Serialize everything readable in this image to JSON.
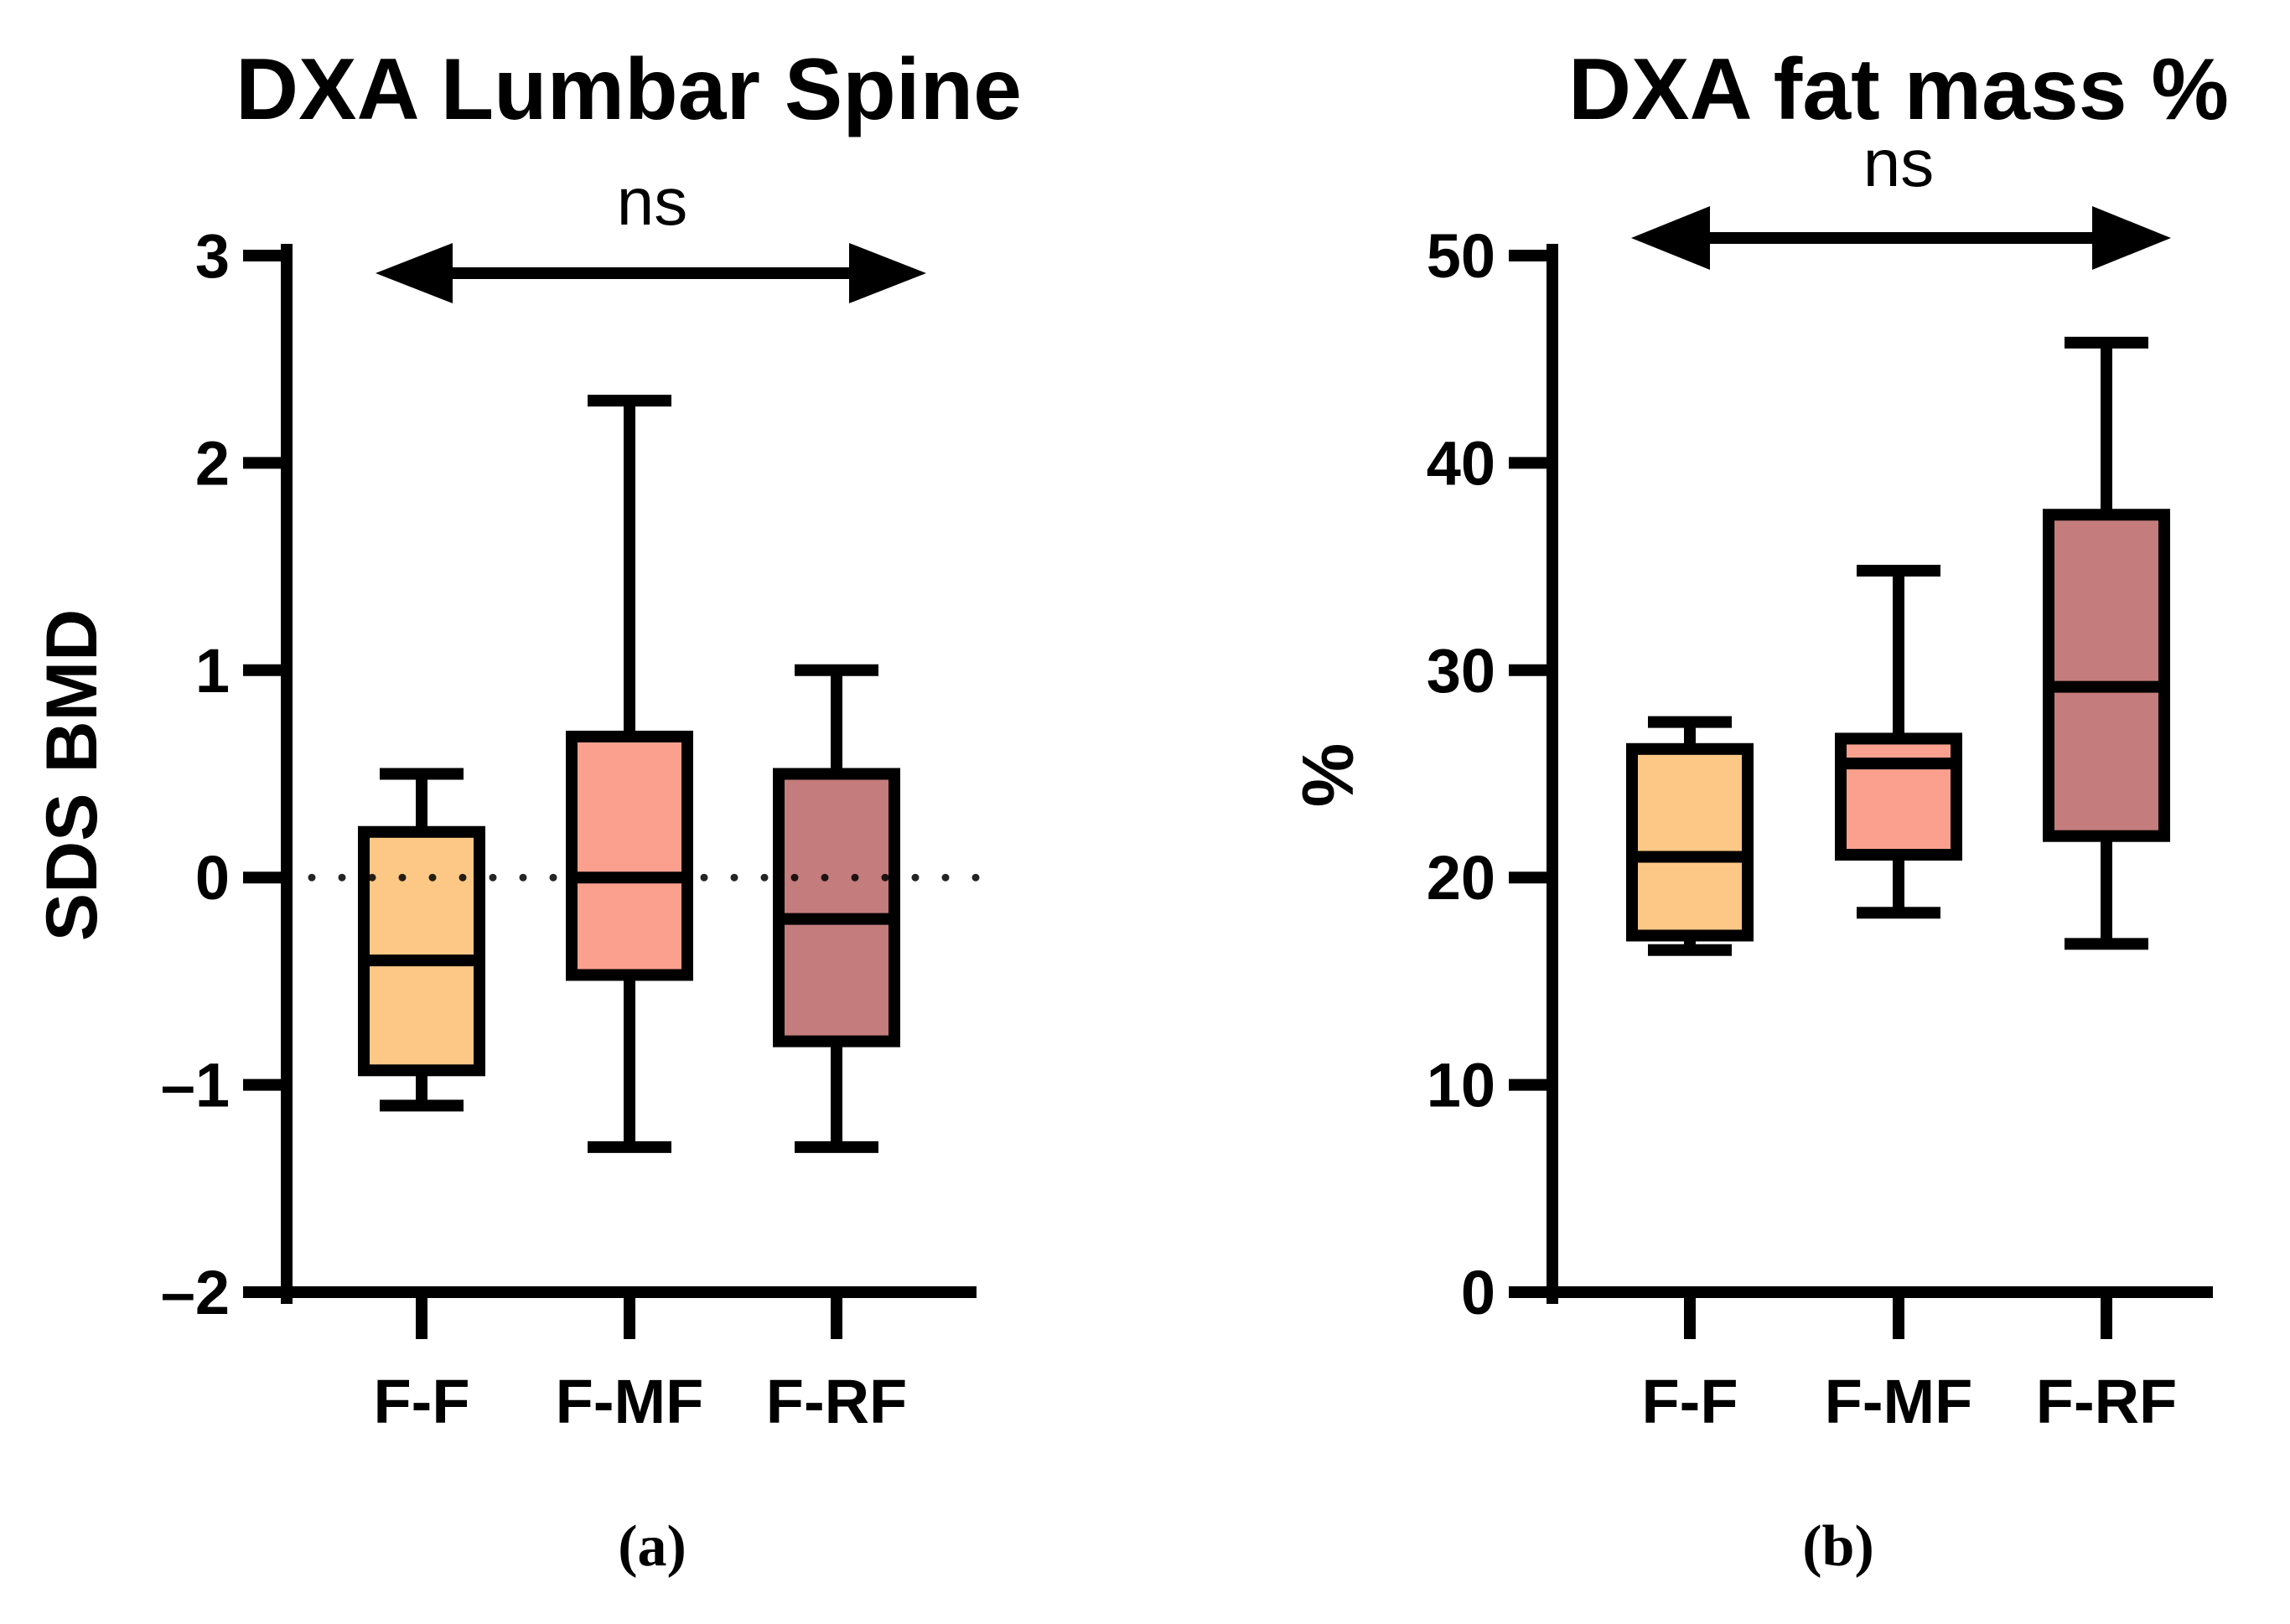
{
  "chart_data": [
    {
      "type": "box",
      "title": "DXA Lumbar Spine",
      "ylabel": "SDS BMD",
      "xlabel": "",
      "panel_label": "(a)",
      "significance": "ns",
      "ylim": [
        -2,
        3
      ],
      "yticks": [
        3,
        2,
        1,
        0,
        -1,
        -2
      ],
      "ytick_labels": [
        "3",
        "2",
        "1",
        "0",
        "–1",
        "–2"
      ],
      "reference_line": 0,
      "categories": [
        "F-F",
        "F-MF",
        "F-RF"
      ],
      "boxes": [
        {
          "category": "F-F",
          "whisker_high": 0.5,
          "q3": 0.22,
          "median": -0.4,
          "q1": -0.93,
          "whisker_low": -1.1,
          "color": "#FDC886"
        },
        {
          "category": "F-MF",
          "whisker_high": 2.3,
          "q3": 0.68,
          "median": 0.0,
          "q1": -0.47,
          "whisker_low": -1.3,
          "color": "#FBA08E"
        },
        {
          "category": "F-RF",
          "whisker_high": 1.0,
          "q3": 0.5,
          "median": -0.2,
          "q1": -0.79,
          "whisker_low": -1.3,
          "color": "#C47C7C"
        }
      ]
    },
    {
      "type": "box",
      "title": "DXA fat mass %",
      "ylabel": "%",
      "xlabel": "",
      "panel_label": "(b)",
      "significance": "ns",
      "ylim": [
        0,
        50
      ],
      "yticks": [
        50,
        40,
        30,
        20,
        10,
        0
      ],
      "ytick_labels": [
        "50",
        "40",
        "30",
        "20",
        "10",
        "0"
      ],
      "categories": [
        "F-F",
        "F-MF",
        "F-RF"
      ],
      "boxes": [
        {
          "category": "F-F",
          "whisker_high": 27.5,
          "q3": 26.2,
          "median": 21.0,
          "q1": 17.2,
          "whisker_low": 16.5,
          "color": "#FDC886"
        },
        {
          "category": "F-MF",
          "whisker_high": 34.8,
          "q3": 26.7,
          "median": 25.5,
          "q1": 21.1,
          "whisker_low": 18.3,
          "color": "#FBA08E"
        },
        {
          "category": "F-RF",
          "whisker_high": 45.8,
          "q3": 37.5,
          "median": 29.2,
          "q1": 22.0,
          "whisker_low": 16.8,
          "color": "#C47C7C"
        }
      ]
    }
  ]
}
